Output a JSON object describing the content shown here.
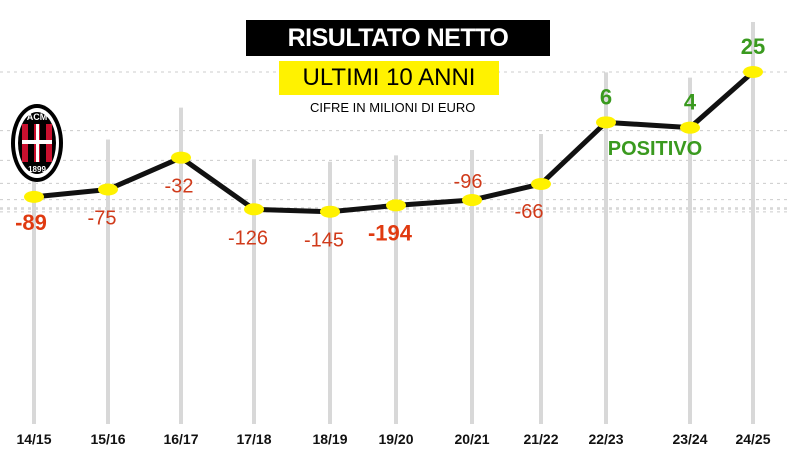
{
  "header": {
    "title": "RISULTATO NETTO",
    "subtitle": "ULTIMI 10 ANNI",
    "note": "CIFRE IN MILIONI DI EURO"
  },
  "logo": {
    "letters": "ACM",
    "year": "1899"
  },
  "annotation": {
    "text": "POSITIVO",
    "color": "#3a9a1f"
  },
  "colors": {
    "negative": "#d03a1a",
    "negative_bold": "#e03a10",
    "positive": "#3a9a1f",
    "marker": "#fff200",
    "line": "#111111",
    "grid": "#cccccc"
  },
  "chart_data": {
    "type": "line",
    "title": "RISULTATO NETTO",
    "subtitle": "ULTIMI 10 ANNI",
    "unit": "CIFRE IN MILIONI DI EURO",
    "categories": [
      "14/15",
      "15/16",
      "16/17",
      "17/18",
      "18/19",
      "19/20",
      "20/21",
      "21/22",
      "22/23",
      "23/24",
      "24/25"
    ],
    "values": [
      -89,
      -75,
      -32,
      -126,
      -145,
      -194,
      -96,
      -66,
      6,
      4,
      25
    ],
    "labels": [
      "-89",
      "-75",
      "-32",
      "-126",
      "-145",
      "-194",
      "-96",
      "-66",
      "6",
      "4",
      "25"
    ],
    "emphasis": [
      "bold",
      "normal",
      "normal",
      "normal",
      "normal",
      "bold",
      "normal",
      "normal",
      "bold",
      "bold",
      "bold"
    ],
    "xlabel": "",
    "ylabel": "",
    "grid": true
  }
}
